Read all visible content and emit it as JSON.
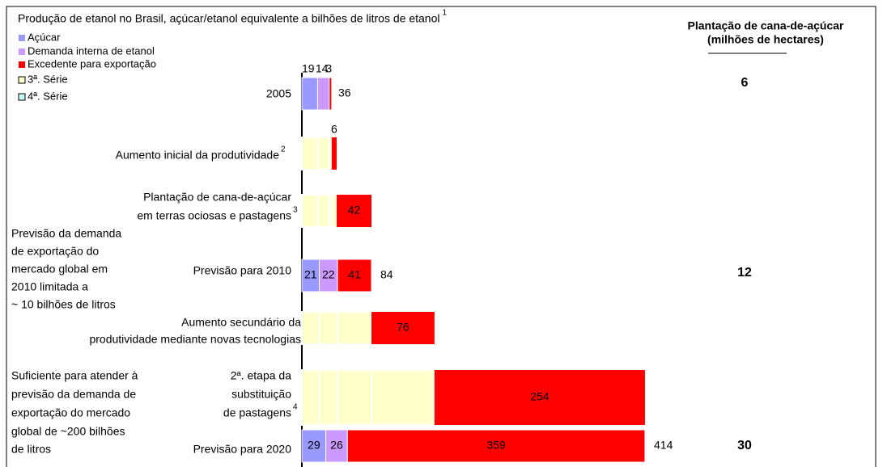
{
  "chart_data": {
    "type": "waterfall",
    "title": "Produção de etanol no Brasil, açúcar/etanol equivalente a bilhões de litros de etanol",
    "title_footnote": "1",
    "series": [
      {
        "name": "Açúcar",
        "color": "#9999ff"
      },
      {
        "name": "Demanda interna de etanol",
        "color": "#cc99ff"
      },
      {
        "name": "Excedente para exportação",
        "color": "#ff0000"
      },
      {
        "name": "3ª. Série",
        "color": "#ffffcc"
      },
      {
        "name": "4ª. Série",
        "color": "#ccffff"
      }
    ],
    "area_title": [
      "Plantação de cana-de-açúcar",
      "(milhões de hectares)"
    ],
    "rows": [
      {
        "label": [
          "2005"
        ],
        "values": [
          19,
          14,
          3
        ],
        "total": 36,
        "area": 6
      },
      {
        "label": [
          "Aumento inicial da produtividade"
        ],
        "footnote": "2",
        "increment": 6
      },
      {
        "label": [
          "Plantação de cana-de-açúcar",
          "em terras ociosas e pastagens"
        ],
        "footnote": "3",
        "increment": 42
      },
      {
        "label": [
          "Previsão para 2010"
        ],
        "values": [
          21,
          22,
          41
        ],
        "total": 84,
        "area": 12
      },
      {
        "label": [
          "Aumento secundário da",
          "produtividade mediante novas tecnologias"
        ],
        "increment": 76
      },
      {
        "label": [
          "2ª. etapa da",
          "substituição",
          "de pastagens"
        ],
        "footnote": "4",
        "increment": 254
      },
      {
        "label": [
          "Previsão para 2020"
        ],
        "values": [
          29,
          26,
          359
        ],
        "total": 414,
        "area": 30
      }
    ],
    "notes": [
      [
        "Previsão da demanda",
        "de exportação do",
        "mercado global em",
        "2010 limitada a",
        "~ 10 bilhões de litros"
      ],
      [
        "Suficiente para atender à",
        "previsão da demanda de",
        "exportação do mercado",
        "global de ~200 bilhões",
        "de litros"
      ]
    ]
  }
}
